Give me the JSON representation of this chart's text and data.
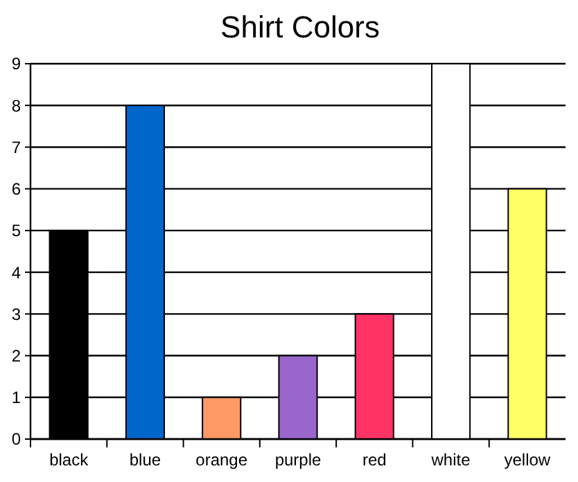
{
  "chart_data": {
    "type": "bar",
    "title": "Shirt Colors",
    "categories": [
      "black",
      "blue",
      "orange",
      "purple",
      "red",
      "white",
      "yellow"
    ],
    "values": [
      5,
      8,
      1,
      2,
      3,
      9,
      6
    ],
    "colors": [
      "#000000",
      "#0066cc",
      "#ff9966",
      "#9966cc",
      "#ff3366",
      "#ffffff",
      "#ffff66"
    ],
    "ylim": [
      0,
      9
    ],
    "yticks": [
      0,
      1,
      2,
      3,
      4,
      5,
      6,
      7,
      8,
      9
    ],
    "grid": "y"
  }
}
